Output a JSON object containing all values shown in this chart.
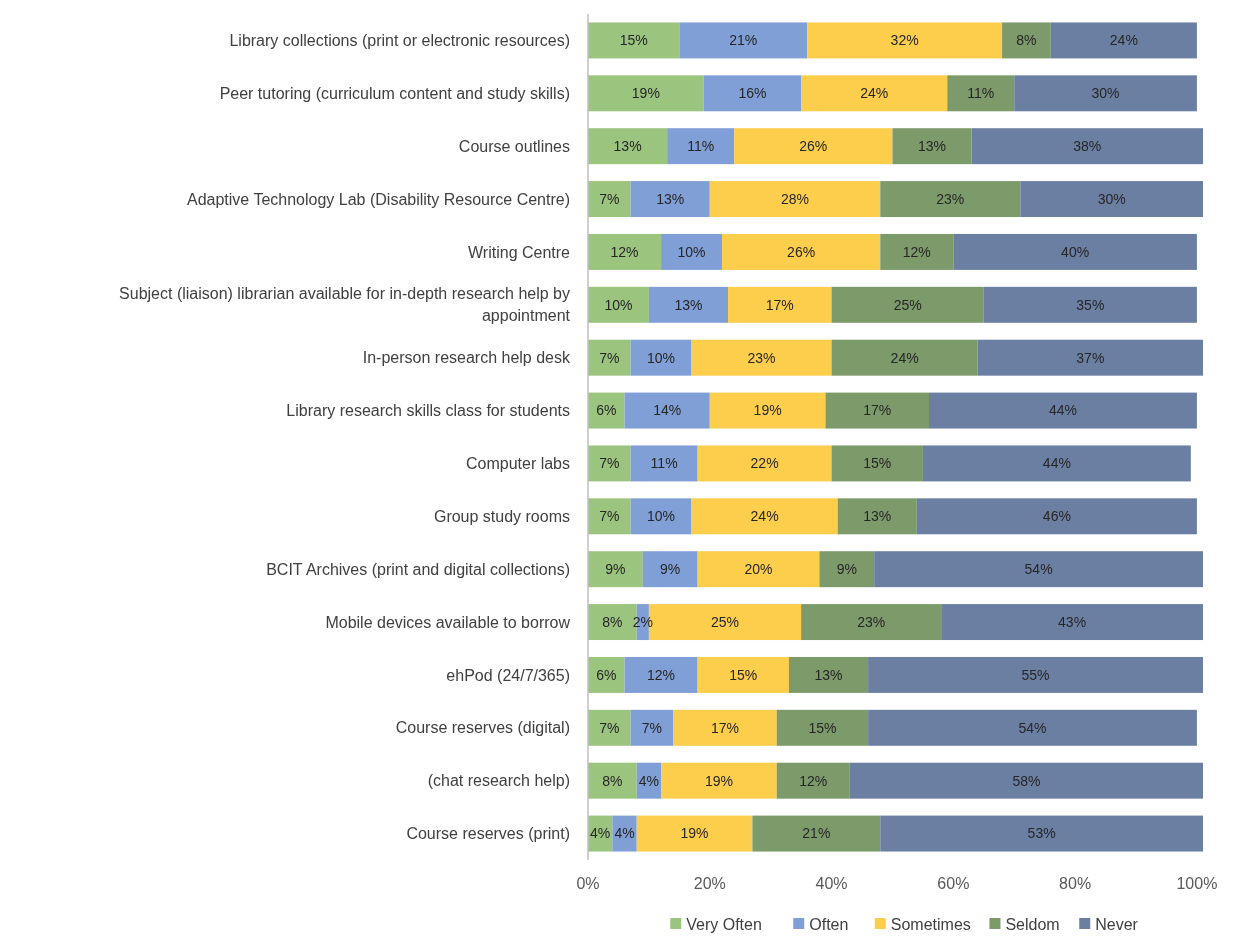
{
  "chart_data": {
    "type": "bar",
    "orientation": "horizontal",
    "stacked": true,
    "legend": "bottom",
    "grid": false,
    "categories": [
      "Library collections (print or electronic resources)",
      "Peer tutoring (curriculum content and study skills)",
      "Course outlines",
      "Adaptive Technology Lab (Disability Resource Centre)",
      "Writing Centre",
      "Subject (liaison) librarian available for in-depth research help by appointment",
      "In-person research help desk",
      "Library research skills class for students",
      "Computer labs",
      "Group study rooms",
      "BCIT Archives (print and digital collections)",
      "Mobile devices available to borrow",
      "ehPod (24/7/365)",
      "Course reserves (digital)",
      "(chat research help)",
      "Course reserves (print)"
    ],
    "xlim": [
      0,
      101
    ],
    "xticks": [
      {
        "value": 0,
        "label": "0%"
      },
      {
        "value": 20,
        "label": "20%"
      },
      {
        "value": 40,
        "label": "40%"
      },
      {
        "value": 60,
        "label": "60%"
      },
      {
        "value": 80,
        "label": "80%"
      },
      {
        "value": 100,
        "label": "100%"
      }
    ],
    "series": [
      {
        "name": "Very Often",
        "color": "#9bc47f",
        "values": [
          15,
          19,
          13,
          7,
          12,
          10,
          7,
          6,
          7,
          7,
          9,
          8,
          6,
          7,
          8,
          4
        ],
        "value_labels": [
          "15%",
          "19%",
          "13%",
          "7%",
          "12%",
          "10%",
          "7%",
          "6%",
          "7%",
          "7%",
          "9%",
          "8%",
          "6%",
          "7%",
          "8%",
          "4%"
        ]
      },
      {
        "name": "Often",
        "color": "#7f9fd6",
        "values": [
          21,
          16,
          11,
          13,
          10,
          13,
          10,
          14,
          11,
          10,
          9,
          2,
          12,
          7,
          4,
          4
        ],
        "value_labels": [
          "21%",
          "16%",
          "11%",
          "13%",
          "10%",
          "13%",
          "10%",
          "14%",
          "11%",
          "10%",
          "9%",
          "2%",
          "12%",
          "7%",
          "4%",
          "4%"
        ]
      },
      {
        "name": "Sometimes",
        "color": "#fdcd4c",
        "values": [
          32,
          24,
          26,
          28,
          26,
          17,
          23,
          19,
          22,
          24,
          20,
          25,
          15,
          17,
          19,
          19
        ],
        "value_labels": [
          "32%",
          "24%",
          "26%",
          "28%",
          "26%",
          "17%",
          "23%",
          "19%",
          "22%",
          "24%",
          "20%",
          "25%",
          "15%",
          "17%",
          "19%",
          "19%"
        ]
      },
      {
        "name": "Seldom",
        "color": "#7d9a6b",
        "values": [
          8,
          11,
          13,
          23,
          12,
          25,
          24,
          17,
          15,
          13,
          9,
          23,
          13,
          15,
          12,
          21
        ],
        "value_labels": [
          "8%",
          "11%",
          "13%",
          "23%",
          "12%",
          "25%",
          "24%",
          "17%",
          "15%",
          "13%",
          "9%",
          "23%",
          "13%",
          "15%",
          "12%",
          "21%"
        ]
      },
      {
        "name": "Never",
        "color": "#6b7fa3",
        "values": [
          24,
          30,
          38,
          30,
          40,
          35,
          37,
          44,
          44,
          46,
          54,
          43,
          55,
          54,
          58,
          53
        ],
        "value_labels": [
          "24%",
          "30%",
          "38%",
          "30%",
          "40%",
          "35%",
          "37%",
          "44%",
          "44%",
          "46%",
          "54%",
          "43%",
          "55%",
          "54%",
          "58%",
          "53%"
        ]
      }
    ]
  }
}
